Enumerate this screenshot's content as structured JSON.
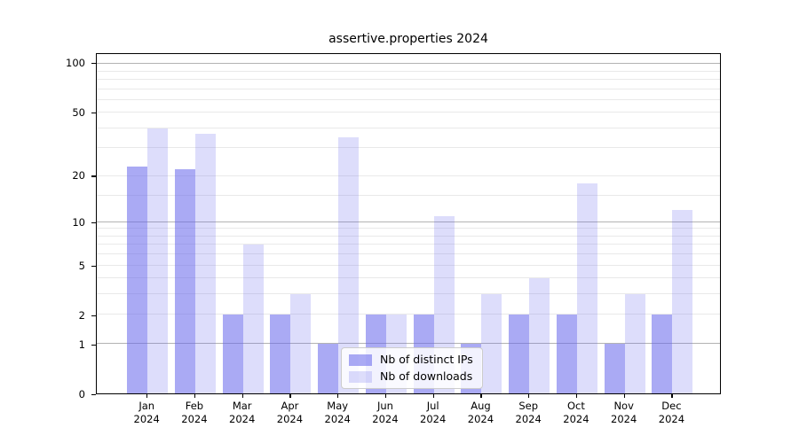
{
  "title": "assertive.properties 2024",
  "chart_data": {
    "type": "bar",
    "title": "assertive.properties 2024",
    "categories": [
      "Jan",
      "Feb",
      "Mar",
      "Apr",
      "May",
      "Jun",
      "Jul",
      "Aug",
      "Sep",
      "Oct",
      "Nov",
      "Dec"
    ],
    "year": "2024",
    "series": [
      {
        "name": "Nb of distinct IPs",
        "color": "#6464eb",
        "alpha": 0.55,
        "values": [
          23,
          22,
          2,
          2,
          1,
          2,
          2,
          1,
          2,
          2,
          1,
          2
        ]
      },
      {
        "name": "Nb of downloads",
        "color": "#6464eb",
        "alpha": 0.22,
        "values": [
          40,
          37,
          7,
          3,
          35,
          2,
          11,
          3,
          4,
          18,
          3,
          12
        ]
      }
    ],
    "xlabel": "",
    "ylabel": "",
    "yscale": "log1p",
    "ylim": [
      0,
      115
    ],
    "y_tick_values": [
      0,
      1,
      2,
      5,
      10,
      20,
      50,
      100
    ],
    "y_tick_labels": [
      "0",
      "1",
      "2",
      "5",
      "10",
      "20",
      "50",
      "100"
    ],
    "grid": {
      "enabled": true,
      "major_values": [
        1,
        10,
        100
      ],
      "minor_values": [
        2,
        3,
        4,
        5,
        6,
        7,
        8,
        9,
        15,
        20,
        30,
        40,
        50,
        60,
        70,
        80,
        90
      ]
    },
    "legend_position": "lower center"
  }
}
